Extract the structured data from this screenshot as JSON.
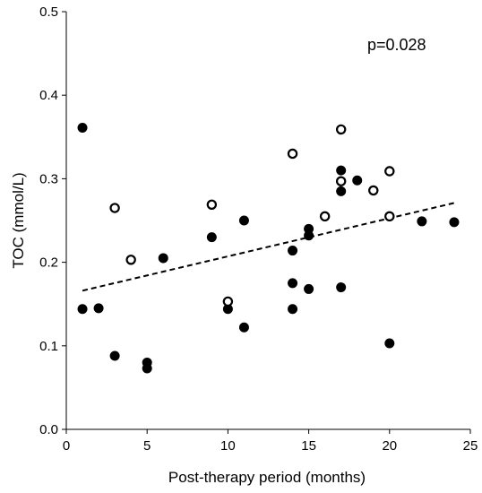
{
  "chart_data": {
    "type": "scatter",
    "xlabel": "Post-therapy period (months)",
    "ylabel": "TOC (mmol/L)",
    "xlim": [
      0,
      25
    ],
    "ylim": [
      0,
      0.5
    ],
    "xticks": [
      "0",
      "5",
      "10",
      "15",
      "20",
      "25"
    ],
    "yticks": [
      "0.0",
      "0.1",
      "0.2",
      "0.3",
      "0.4",
      "0.5"
    ],
    "grid": false,
    "legend": "none",
    "annotation": "p=0.028",
    "series": [
      {
        "marker": "filled",
        "color": "#000000",
        "points": [
          [
            1,
            0.361
          ],
          [
            1,
            0.144
          ],
          [
            2,
            0.145
          ],
          [
            3,
            0.088
          ],
          [
            5,
            0.08
          ],
          [
            5,
            0.073
          ],
          [
            6,
            0.205
          ],
          [
            9,
            0.23
          ],
          [
            10,
            0.144
          ],
          [
            11,
            0.25
          ],
          [
            11,
            0.122
          ],
          [
            14,
            0.214
          ],
          [
            14,
            0.175
          ],
          [
            14,
            0.144
          ],
          [
            15,
            0.24
          ],
          [
            15,
            0.232
          ],
          [
            15,
            0.168
          ],
          [
            17,
            0.31
          ],
          [
            17,
            0.285
          ],
          [
            17,
            0.17
          ],
          [
            18,
            0.298
          ],
          [
            20,
            0.103
          ],
          [
            22,
            0.249
          ],
          [
            24,
            0.248
          ]
        ]
      },
      {
        "marker": "open",
        "color": "#000000",
        "points": [
          [
            3,
            0.265
          ],
          [
            4,
            0.203
          ],
          [
            9,
            0.269
          ],
          [
            10,
            0.153
          ],
          [
            14,
            0.33
          ],
          [
            16,
            0.255
          ],
          [
            17,
            0.359
          ],
          [
            17,
            0.297
          ],
          [
            19,
            0.286
          ],
          [
            20,
            0.309
          ],
          [
            20,
            0.255
          ]
        ]
      }
    ],
    "trendline": {
      "style": "dashed",
      "from": [
        1,
        0.166
      ],
      "to": [
        24,
        0.271
      ]
    }
  }
}
